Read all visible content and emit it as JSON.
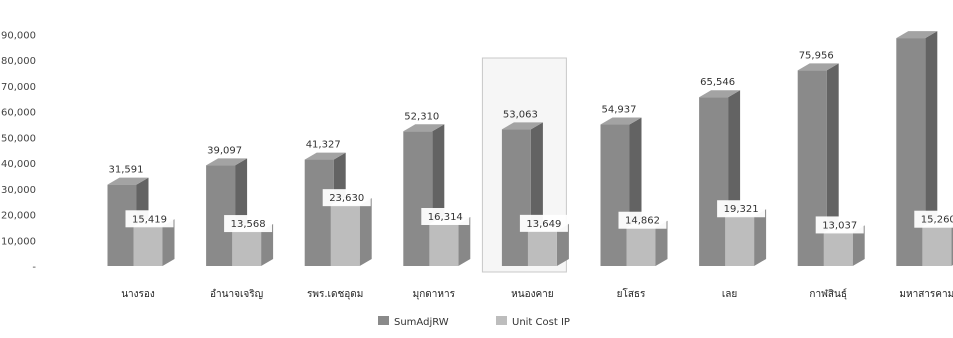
{
  "chart_data": {
    "type": "bar",
    "render": "3d-grouped",
    "categories": [
      "นางรอง",
      "อำนาจเจริญ",
      "รพร.เดชอุดม",
      "มุกดาหาร",
      "หนองคาย",
      "ยโสธร",
      "เลย",
      "กาฬสินธุ์",
      "มหาสารคาม"
    ],
    "series": [
      {
        "name": "SumAdjRW",
        "color": "#8a8a8a",
        "values": [
          31591,
          39097,
          41327,
          52310,
          53063,
          54937,
          65546,
          75956,
          88500
        ],
        "labels": [
          "31,591",
          "39,097",
          "41,327",
          "52,310",
          "53,063",
          "54,937",
          "65,546",
          "75,956",
          ""
        ]
      },
      {
        "name": "Unit Cost IP",
        "color": "#bdbdbd",
        "values": [
          15419,
          13568,
          23630,
          16314,
          13649,
          14862,
          19321,
          13037,
          15260
        ],
        "labels": [
          "15,419",
          "13,568",
          "23,630",
          "16,314",
          "13,649",
          "14,862",
          "19,321",
          "13,037",
          "15,260"
        ]
      }
    ],
    "yticks": [
      "-",
      "10,000",
      "20,000",
      "30,000",
      "40,000",
      "50,000",
      "60,000",
      "70,000",
      "80,000",
      "90,000"
    ],
    "ylim": [
      0,
      90000
    ],
    "highlighted_category": "หนองคาย",
    "legend_position": "bottom",
    "grid": false,
    "title": "",
    "xlabel": "",
    "ylabel": ""
  }
}
